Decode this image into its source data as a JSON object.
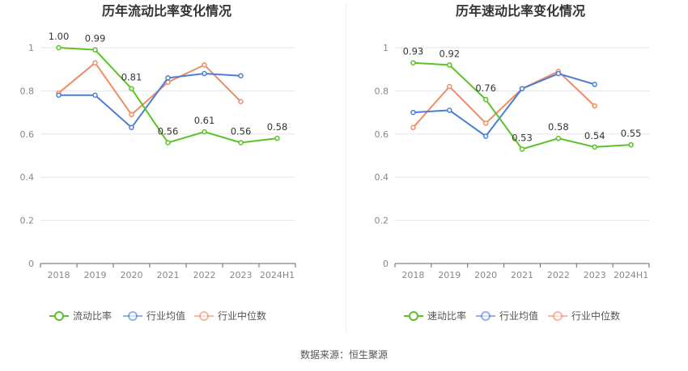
{
  "source": "数据来源：恒生聚源",
  "chart_data": [
    {
      "type": "line",
      "title": "历年流动比率变化情况",
      "categories": [
        "2018",
        "2019",
        "2020",
        "2021",
        "2022",
        "2023",
        "2024H1"
      ],
      "ylim": [
        0,
        1
      ],
      "yticks": [
        "0",
        "0.2",
        "0.4",
        "0.6",
        "0.8",
        "1"
      ],
      "grid": true,
      "legend_position": "bottom",
      "series": [
        {
          "name": "流动比率",
          "color": "#5cc228",
          "values": [
            1.0,
            0.99,
            0.81,
            0.56,
            0.61,
            0.56,
            0.58
          ],
          "labels": [
            "1.00",
            "0.99",
            "0.81",
            "0.56",
            "0.61",
            "0.56",
            "0.58"
          ]
        },
        {
          "name": "行业均值",
          "color": "#4b7fd6",
          "values": [
            0.78,
            0.78,
            0.63,
            0.86,
            0.88,
            0.87,
            null
          ]
        },
        {
          "name": "行业中位数",
          "color": "#f28c65",
          "values": [
            0.79,
            0.93,
            0.69,
            0.84,
            0.92,
            0.75,
            null
          ]
        }
      ]
    },
    {
      "type": "line",
      "title": "历年速动比率变化情况",
      "categories": [
        "2018",
        "2019",
        "2020",
        "2021",
        "2022",
        "2023",
        "2024H1"
      ],
      "ylim": [
        0,
        1
      ],
      "yticks": [
        "0",
        "0.2",
        "0.4",
        "0.6",
        "0.8",
        "1"
      ],
      "grid": true,
      "legend_position": "bottom",
      "series": [
        {
          "name": "速动比率",
          "color": "#5cc228",
          "values": [
            0.93,
            0.92,
            0.76,
            0.53,
            0.58,
            0.54,
            0.55
          ],
          "labels": [
            "0.93",
            "0.92",
            "0.76",
            "0.53",
            "0.58",
            "0.54",
            "0.55"
          ]
        },
        {
          "name": "行业均值",
          "color": "#4b7fd6",
          "values": [
            0.7,
            0.71,
            0.59,
            0.81,
            0.88,
            0.83,
            null
          ]
        },
        {
          "name": "行业中位数",
          "color": "#f28c65",
          "values": [
            0.63,
            0.82,
            0.65,
            0.81,
            0.89,
            0.73,
            null
          ]
        }
      ]
    }
  ]
}
